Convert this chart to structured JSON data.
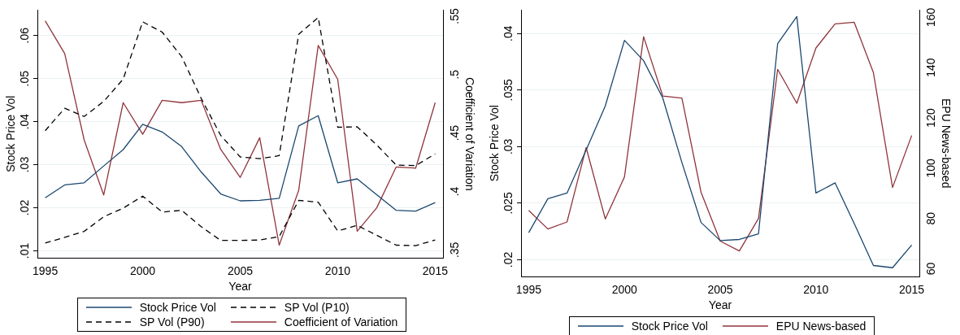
{
  "chart_data": [
    {
      "type": "line",
      "xlabel": "Year",
      "ylabel": "Stock Price Vol",
      "y2label": "Coefficient of Variation",
      "x": [
        1995,
        1996,
        1997,
        1998,
        1999,
        2000,
        2001,
        2002,
        2003,
        2004,
        2005,
        2006,
        2007,
        2008,
        2009,
        2010,
        2011,
        2012,
        2013,
        2014,
        2015
      ],
      "series": [
        {
          "name": "Stock Price Vol",
          "color": "#1a476f",
          "line_style": "solid",
          "values": [
            0.0223,
            0.0253,
            0.0258,
            0.0297,
            0.0335,
            0.0394,
            0.0376,
            0.0342,
            0.0283,
            0.0232,
            0.0216,
            0.0217,
            0.0222,
            0.039,
            0.0414,
            0.0258,
            0.0267,
            0.023,
            0.0194,
            0.0192,
            0.0212
          ]
        },
        {
          "name": "SP Vol (P10)",
          "color": "#000000",
          "line_style": "dashed",
          "values": [
            0.0118,
            0.0131,
            0.0145,
            0.0179,
            0.0199,
            0.0227,
            0.019,
            0.0194,
            0.0156,
            0.0124,
            0.0124,
            0.0125,
            0.0133,
            0.0217,
            0.0213,
            0.0146,
            0.0159,
            0.0136,
            0.0113,
            0.0112,
            0.0125
          ]
        },
        {
          "name": "SP Vol (P90)",
          "color": "#000000",
          "line_style": "dashed",
          "values": [
            0.0379,
            0.0431,
            0.0412,
            0.0447,
            0.0499,
            0.0632,
            0.0608,
            0.0551,
            0.0454,
            0.0368,
            0.0318,
            0.0314,
            0.0321,
            0.0603,
            0.0642,
            0.0387,
            0.0388,
            0.0346,
            0.0299,
            0.0298,
            0.0325
          ]
        },
        {
          "name": "Coefficient of Variation",
          "color": "#90353b",
          "line_style": "solid",
          "axis": "y2",
          "values": [
            0.546,
            0.518,
            0.444,
            0.397,
            0.476,
            0.449,
            0.478,
            0.476,
            0.478,
            0.436,
            0.412,
            0.446,
            0.354,
            0.401,
            0.525,
            0.496,
            0.366,
            0.386,
            0.421,
            0.42,
            0.476
          ]
        }
      ],
      "xlim": [
        1994.6,
        2015.4
      ],
      "xticks": [
        1995,
        2000,
        2005,
        2010,
        2015
      ],
      "ylim": [
        0.0083,
        0.066
      ],
      "yticks": [
        {
          "value": 0.01,
          "label": ".01"
        },
        {
          "value": 0.02,
          "label": ".02"
        },
        {
          "value": 0.03,
          "label": ".03"
        },
        {
          "value": 0.04,
          "label": ".04"
        },
        {
          "value": 0.05,
          "label": ".05"
        },
        {
          "value": 0.06,
          "label": ".06"
        }
      ],
      "y2lim": [
        0.343,
        0.5555
      ],
      "y2ticks": [
        {
          "value": 0.35,
          "label": ".35"
        },
        {
          "value": 0.4,
          "label": ".4"
        },
        {
          "value": 0.45,
          "label": ".45"
        },
        {
          "value": 0.5,
          "label": ".5"
        },
        {
          "value": 0.55,
          "label": ".55"
        }
      ],
      "grid": "y",
      "legend": "bottom",
      "marker": "none"
    },
    {
      "type": "line",
      "xlabel": "Year",
      "ylabel": "Stock Price Vol",
      "y2label": "EPU News-based",
      "x": [
        1995,
        1996,
        1997,
        1998,
        1999,
        2000,
        2001,
        2002,
        2003,
        2004,
        2005,
        2006,
        2007,
        2008,
        2009,
        2010,
        2011,
        2012,
        2013,
        2014,
        2015
      ],
      "series": [
        {
          "name": "Stock Price Vol",
          "color": "#1a476f",
          "values": [
            0.0224,
            0.0254,
            0.0259,
            0.0297,
            0.0336,
            0.0394,
            0.0376,
            0.0343,
            0.0286,
            0.0233,
            0.0217,
            0.0218,
            0.0223,
            0.0391,
            0.0415,
            0.0259,
            0.0268,
            0.0232,
            0.0195,
            0.0193,
            0.0213
          ]
        },
        {
          "name": "EPU News-based",
          "color": "#90353b",
          "axis": "y2",
          "values": [
            83.2,
            75.8,
            78.6,
            108.2,
            79.8,
            96.5,
            152.3,
            128.7,
            127.9,
            90.4,
            71,
            67.1,
            80,
            139.3,
            125.8,
            147.8,
            157.4,
            158,
            138,
            92.3,
            113
          ]
        }
      ],
      "xlim": [
        1994.6,
        2015.4
      ],
      "xticks": [
        1995,
        2000,
        2005,
        2010,
        2015
      ],
      "ylim": [
        0.0185,
        0.0421
      ],
      "yticks": [
        {
          "value": 0.02,
          "label": ".02"
        },
        {
          "value": 0.025,
          "label": ".025"
        },
        {
          "value": 0.03,
          "label": ".03"
        },
        {
          "value": 0.035,
          "label": ".035"
        },
        {
          "value": 0.04,
          "label": ".04"
        }
      ],
      "y2lim": [
        56.8,
        163
      ],
      "y2ticks": [
        60,
        80,
        100,
        120,
        140,
        160
      ],
      "grid": "y",
      "legend": "bottom",
      "marker": "none"
    }
  ]
}
